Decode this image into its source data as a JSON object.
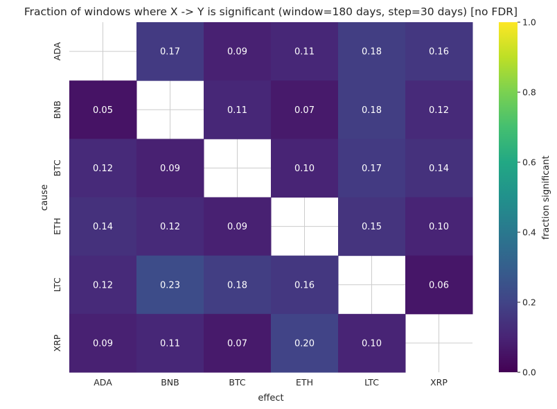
{
  "chart_data": {
    "type": "heatmap",
    "title": "Fraction of windows where X -> Y is significant (window=180 days, step=30 days) [no FDR]",
    "xlabel": "effect",
    "ylabel": "cause",
    "x_categories": [
      "ADA",
      "BNB",
      "BTC",
      "ETH",
      "LTC",
      "XRP"
    ],
    "y_categories": [
      "ADA",
      "BNB",
      "BTC",
      "ETH",
      "LTC",
      "XRP"
    ],
    "values": [
      [
        null,
        0.17,
        0.09,
        0.11,
        0.18,
        0.16
      ],
      [
        0.05,
        null,
        0.11,
        0.07,
        0.18,
        0.12
      ],
      [
        0.12,
        0.09,
        null,
        0.1,
        0.17,
        0.14
      ],
      [
        0.14,
        0.12,
        0.09,
        null,
        0.15,
        0.1
      ],
      [
        0.12,
        0.23,
        0.18,
        0.16,
        null,
        0.06
      ],
      [
        0.09,
        0.11,
        0.07,
        0.2,
        0.1,
        null
      ]
    ],
    "value_labels": [
      [
        "",
        "0.17",
        "0.09",
        "0.11",
        "0.18",
        "0.16"
      ],
      [
        "0.05",
        "",
        "0.11",
        "0.07",
        "0.18",
        "0.12"
      ],
      [
        "0.12",
        "0.09",
        "",
        "0.10",
        "0.17",
        "0.14"
      ],
      [
        "0.14",
        "0.12",
        "0.09",
        "",
        "0.15",
        "0.10"
      ],
      [
        "0.12",
        "0.23",
        "0.18",
        "0.16",
        "",
        "0.06"
      ],
      [
        "0.09",
        "0.11",
        "0.07",
        "0.20",
        "0.10",
        ""
      ]
    ],
    "colorbar": {
      "label": "fraction significant",
      "range": [
        0.0,
        1.0
      ],
      "ticks": [
        0.0,
        0.2,
        0.4,
        0.6,
        0.8,
        1.0
      ],
      "tick_labels": [
        "0.0",
        "0.2",
        "0.4",
        "0.6",
        "0.8",
        "1.0"
      ],
      "colormap": "viridis"
    },
    "grid": true
  }
}
